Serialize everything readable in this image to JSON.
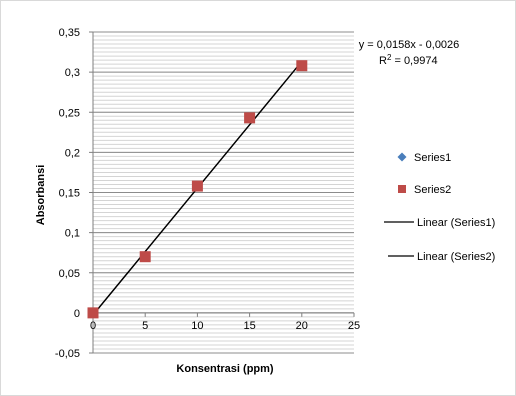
{
  "chart_data": {
    "type": "scatter",
    "xlabel": "Konsentrasi (ppm)",
    "ylabel": "Absorbansi",
    "xlim": [
      0,
      25
    ],
    "ylim": [
      -0.05,
      0.35
    ],
    "x_ticks": [
      0,
      5,
      10,
      15,
      20,
      25
    ],
    "y_ticks": [
      -0.05,
      0,
      0.05,
      0.1,
      0.15,
      0.2,
      0.25,
      0.3,
      0.35
    ],
    "x_tick_labels": [
      "0",
      "5",
      "10",
      "15",
      "20",
      "25"
    ],
    "y_tick_labels": [
      "-0,05",
      "0",
      "0,05",
      "0,1",
      "0,15",
      "0,2",
      "0,25",
      "0,3",
      "0,35"
    ],
    "grid": "horizontal",
    "legend_position": "right",
    "series": [
      {
        "name": "Series1",
        "marker": "diamond",
        "color": "#4a7ebb",
        "x": [
          0,
          5,
          10,
          15,
          20
        ],
        "y": [
          0,
          0.07,
          0.158,
          0.243,
          0.308
        ]
      },
      {
        "name": "Series2",
        "marker": "square",
        "color": "#be4b48",
        "x": [
          0,
          5,
          10,
          15,
          20
        ],
        "y": [
          0,
          0.07,
          0.158,
          0.243,
          0.308
        ]
      }
    ],
    "trendlines": [
      {
        "name": "Linear (Series1)",
        "slope": 0.0158,
        "intercept": -0.0026,
        "color": "#000000"
      },
      {
        "name": "Linear (Series2)",
        "slope": 0.0158,
        "intercept": -0.0026,
        "color": "#000000"
      }
    ],
    "annotations": {
      "equation": "y = 0,0158x - 0,0026",
      "r2_label": "R",
      "r2_sup": "2",
      "r2_value": " = 0,9974"
    }
  }
}
